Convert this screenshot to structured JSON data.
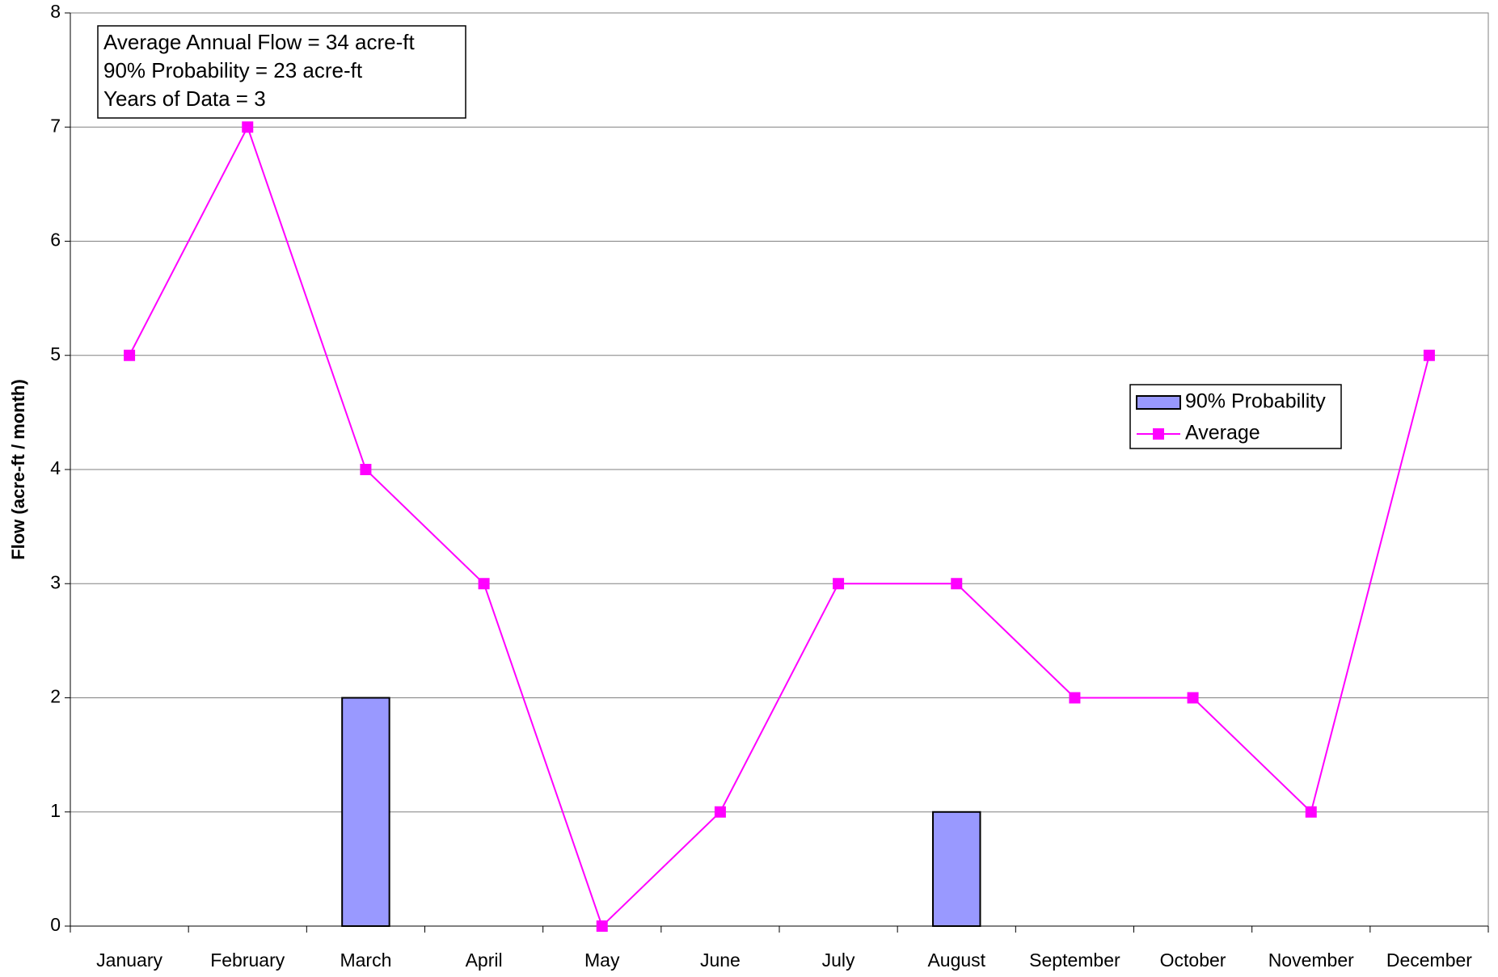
{
  "chart_data": {
    "type": "bar_line",
    "y_axis_label": "Flow (acre-ft / month)",
    "annotations": [
      "Average Annual Flow = 34 acre-ft",
      "90% Probability = 23 acre-ft",
      "Years of Data = 3"
    ],
    "categories": [
      "January",
      "February",
      "March",
      "April",
      "May",
      "June",
      "July",
      "August",
      "September",
      "October",
      "November",
      "December"
    ],
    "series": [
      {
        "name": "90% Probability",
        "type": "bar",
        "color": "#9999ff",
        "values": [
          0,
          0,
          2,
          0,
          0,
          0,
          0,
          1,
          0,
          0,
          0,
          0
        ]
      },
      {
        "name": "Average",
        "type": "line",
        "color": "#ff00ff",
        "values": [
          5,
          7,
          4,
          3,
          0,
          1,
          3,
          3,
          2,
          2,
          1,
          5
        ]
      }
    ],
    "ylim": [
      0,
      8
    ],
    "yticks": [
      0,
      1,
      2,
      3,
      4,
      5,
      6,
      7,
      8
    ],
    "grid": true,
    "legend": "right"
  }
}
